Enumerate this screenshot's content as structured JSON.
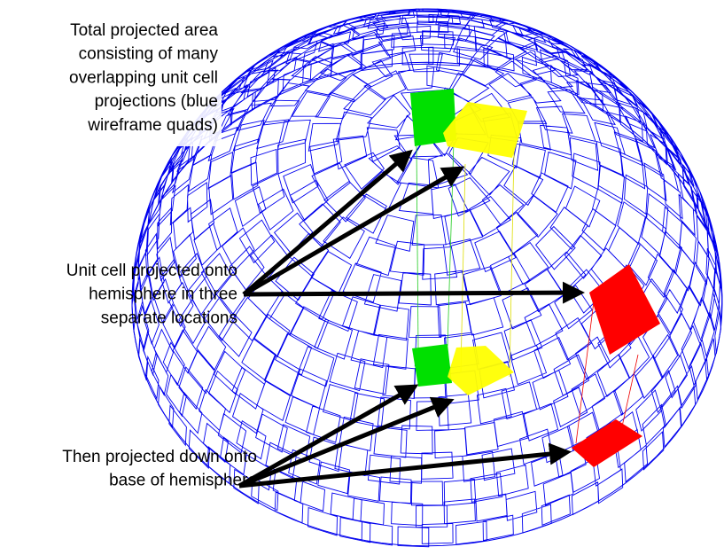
{
  "labels": [
    {
      "lines": [
        "Total projected area",
        "consisting of many",
        "overlapping unit cell",
        "projections (blue",
        "wireframe quads)"
      ]
    },
    {
      "lines": [
        "Unit cell projected onto",
        "hemisphere in three",
        "separate locations"
      ]
    },
    {
      "lines": [
        "Then projected down onto",
        "base of hemisphere"
      ]
    }
  ]
}
